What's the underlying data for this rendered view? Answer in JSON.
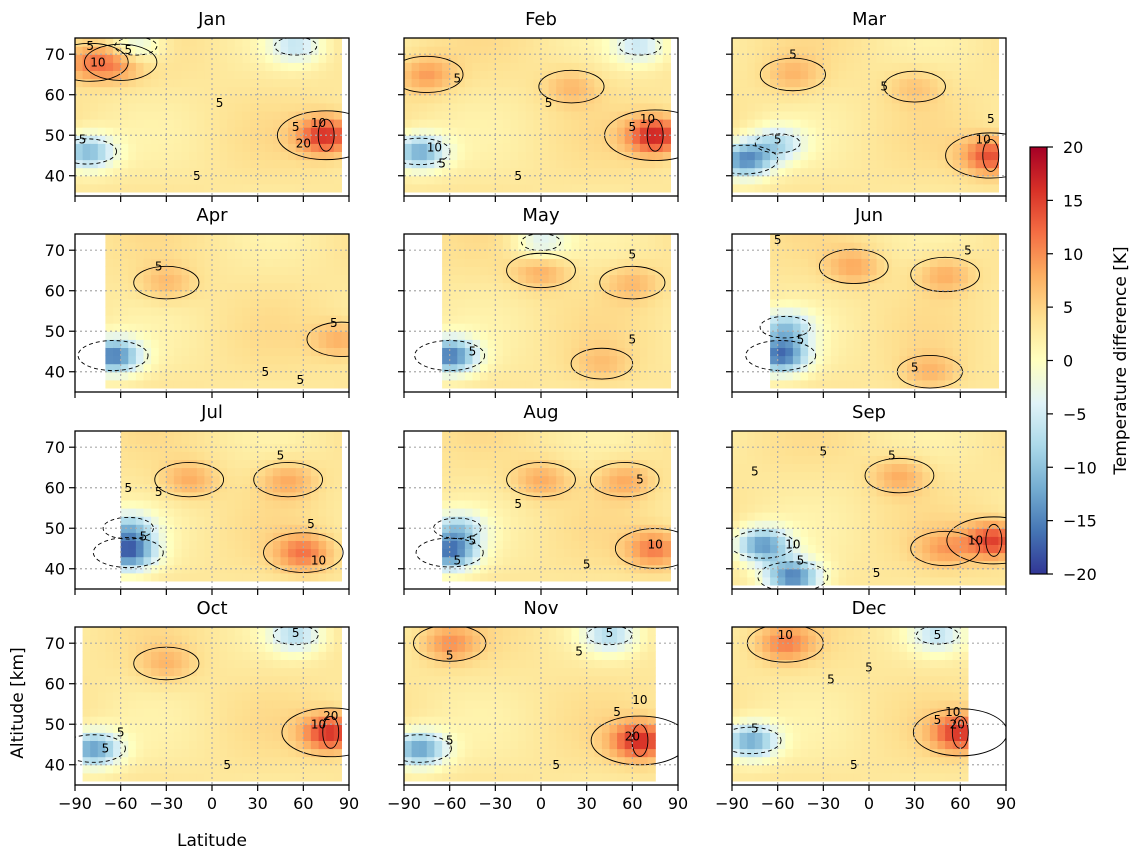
{
  "chart_data": {
    "type": "heatmap",
    "layout": {
      "rows": 4,
      "cols": 3
    },
    "xlabel": "Latitude",
    "ylabel": "Altitude [km]",
    "xlim": [
      -90,
      90
    ],
    "ylim": [
      35,
      74
    ],
    "xticks": [
      -90,
      -60,
      -30,
      0,
      30,
      60,
      90
    ],
    "yticks": [
      40,
      50,
      60,
      70
    ],
    "grid": true,
    "contour_levels": [
      -10,
      -5,
      5,
      10,
      20
    ],
    "colorbar": {
      "label": "Temperature difference [K]",
      "range": [
        -20,
        20
      ],
      "ticks": [
        20,
        15,
        10,
        5,
        0,
        -5,
        -10,
        -15,
        -20
      ],
      "colormap": "RdYlBu_r",
      "colors": [
        "#313695",
        "#4575b4",
        "#74add1",
        "#abd9e9",
        "#e0f3f8",
        "#ffffbf",
        "#fee090",
        "#fdae61",
        "#f46d43",
        "#d73027",
        "#a50026"
      ]
    },
    "panels": [
      {
        "month": "Jan",
        "lat_range": [
          -90,
          85
        ],
        "alt_min": 36,
        "warm": [
          {
            "lat": 75,
            "alt": 50,
            "v": 16
          },
          {
            "lat": -80,
            "alt": 68,
            "v": 10
          },
          {
            "lat": -60,
            "alt": 68,
            "v": 9
          }
        ],
        "cold": [
          {
            "lat": -82,
            "alt": 46,
            "v": -11
          },
          {
            "lat": -50,
            "alt": 72,
            "v": -5
          },
          {
            "lat": 55,
            "alt": 72,
            "v": -5
          }
        ],
        "contour_labels": [
          {
            "lat": -80,
            "alt": 71,
            "text": "5"
          },
          {
            "lat": -55,
            "alt": 70,
            "text": "5"
          },
          {
            "lat": -75,
            "alt": 67,
            "text": "10"
          },
          {
            "lat": 5,
            "alt": 57,
            "text": "5"
          },
          {
            "lat": 55,
            "alt": 51,
            "text": "5"
          },
          {
            "lat": 70,
            "alt": 52,
            "text": "10"
          },
          {
            "lat": 60,
            "alt": 47,
            "text": "20"
          },
          {
            "lat": -85,
            "alt": 48,
            "text": "5"
          },
          {
            "lat": -10,
            "alt": 39,
            "text": "5"
          }
        ]
      },
      {
        "month": "Feb",
        "lat_range": [
          -90,
          85
        ],
        "alt_min": 36,
        "warm": [
          {
            "lat": 75,
            "alt": 50,
            "v": 17
          },
          {
            "lat": -75,
            "alt": 65,
            "v": 9
          },
          {
            "lat": 20,
            "alt": 62,
            "v": 7
          }
        ],
        "cold": [
          {
            "lat": -80,
            "alt": 46,
            "v": -12
          },
          {
            "lat": 65,
            "alt": 72,
            "v": -5
          }
        ],
        "contour_labels": [
          {
            "lat": -55,
            "alt": 63,
            "text": "5"
          },
          {
            "lat": 5,
            "alt": 57,
            "text": "5"
          },
          {
            "lat": 60,
            "alt": 51,
            "text": "5"
          },
          {
            "lat": 70,
            "alt": 53,
            "text": "10"
          },
          {
            "lat": -70,
            "alt": 46,
            "text": "10"
          },
          {
            "lat": -65,
            "alt": 42,
            "text": "5"
          },
          {
            "lat": -15,
            "alt": 39,
            "text": "5"
          }
        ]
      },
      {
        "month": "Mar",
        "lat_range": [
          -90,
          85
        ],
        "alt_min": 36,
        "warm": [
          {
            "lat": 80,
            "alt": 45,
            "v": 14
          },
          {
            "lat": -50,
            "alt": 65,
            "v": 7
          },
          {
            "lat": 30,
            "alt": 62,
            "v": 6
          }
        ],
        "cold": [
          {
            "lat": -82,
            "alt": 44,
            "v": -14
          },
          {
            "lat": -60,
            "alt": 48,
            "v": -6
          }
        ],
        "contour_labels": [
          {
            "lat": -50,
            "alt": 69,
            "text": "5"
          },
          {
            "lat": 10,
            "alt": 61,
            "text": "5"
          },
          {
            "lat": -60,
            "alt": 48,
            "text": "5"
          },
          {
            "lat": 75,
            "alt": 48,
            "text": "10"
          },
          {
            "lat": 80,
            "alt": 53,
            "text": "5"
          }
        ]
      },
      {
        "month": "Apr",
        "lat_range": [
          -70,
          88
        ],
        "alt_min": 36,
        "warm": [
          {
            "lat": -30,
            "alt": 62,
            "v": 7
          },
          {
            "lat": 85,
            "alt": 48,
            "v": 8
          }
        ],
        "cold": [
          {
            "lat": -65,
            "alt": 44,
            "v": -15
          }
        ],
        "contour_labels": [
          {
            "lat": -35,
            "alt": 65,
            "text": "5"
          },
          {
            "lat": 35,
            "alt": 39,
            "text": "5"
          },
          {
            "lat": 58,
            "alt": 37,
            "text": "5"
          },
          {
            "lat": 80,
            "alt": 51,
            "text": "5"
          }
        ]
      },
      {
        "month": "May",
        "lat_range": [
          -65,
          85
        ],
        "alt_min": 36,
        "warm": [
          {
            "lat": 0,
            "alt": 65,
            "v": 8
          },
          {
            "lat": 60,
            "alt": 62,
            "v": 7
          },
          {
            "lat": 40,
            "alt": 42,
            "v": 6
          }
        ],
        "cold": [
          {
            "lat": -60,
            "alt": 44,
            "v": -15
          },
          {
            "lat": 0,
            "alt": 72,
            "v": -4
          }
        ],
        "contour_labels": [
          {
            "lat": 60,
            "alt": 68,
            "text": "5"
          },
          {
            "lat": -45,
            "alt": 44,
            "text": "5"
          },
          {
            "lat": 60,
            "alt": 47,
            "text": "5"
          }
        ]
      },
      {
        "month": "Jun",
        "lat_range": [
          -65,
          85
        ],
        "alt_min": 36,
        "warm": [
          {
            "lat": -10,
            "alt": 66,
            "v": 8
          },
          {
            "lat": 50,
            "alt": 64,
            "v": 8
          },
          {
            "lat": 40,
            "alt": 40,
            "v": 7
          }
        ],
        "cold": [
          {
            "lat": -58,
            "alt": 44,
            "v": -15
          },
          {
            "lat": -55,
            "alt": 51,
            "v": -8
          }
        ],
        "contour_labels": [
          {
            "lat": -60,
            "alt": 72,
            "text": "5"
          },
          {
            "lat": 65,
            "alt": 69,
            "text": "5"
          },
          {
            "lat": -45,
            "alt": 47,
            "text": "5"
          },
          {
            "lat": 30,
            "alt": 40,
            "text": "5"
          }
        ]
      },
      {
        "month": "Jul",
        "lat_range": [
          -60,
          85
        ],
        "alt_min": 37,
        "warm": [
          {
            "lat": -15,
            "alt": 62,
            "v": 8
          },
          {
            "lat": 50,
            "alt": 62,
            "v": 8
          },
          {
            "lat": 60,
            "alt": 44,
            "v": 11
          }
        ],
        "cold": [
          {
            "lat": -55,
            "alt": 44,
            "v": -15
          },
          {
            "lat": -55,
            "alt": 50,
            "v": -8
          }
        ],
        "contour_labels": [
          {
            "lat": -55,
            "alt": 59,
            "text": "5"
          },
          {
            "lat": -35,
            "alt": 58,
            "text": "5"
          },
          {
            "lat": 45,
            "alt": 67,
            "text": "5"
          },
          {
            "lat": 65,
            "alt": 50,
            "text": "5"
          },
          {
            "lat": 70,
            "alt": 41,
            "text": "10"
          },
          {
            "lat": -45,
            "alt": 47,
            "text": "5"
          }
        ]
      },
      {
        "month": "Aug",
        "lat_range": [
          -65,
          83
        ],
        "alt_min": 37,
        "warm": [
          {
            "lat": 0,
            "alt": 62,
            "v": 8
          },
          {
            "lat": 55,
            "alt": 62,
            "v": 8
          },
          {
            "lat": 75,
            "alt": 45,
            "v": 11
          }
        ],
        "cold": [
          {
            "lat": -60,
            "alt": 44,
            "v": -14
          },
          {
            "lat": -55,
            "alt": 50,
            "v": -7
          }
        ],
        "contour_labels": [
          {
            "lat": -15,
            "alt": 55,
            "text": "5"
          },
          {
            "lat": 65,
            "alt": 61,
            "text": "5"
          },
          {
            "lat": 75,
            "alt": 45,
            "text": "10"
          },
          {
            "lat": -45,
            "alt": 46,
            "text": "5"
          },
          {
            "lat": -55,
            "alt": 41,
            "text": "5"
          },
          {
            "lat": 30,
            "alt": 40,
            "text": "5"
          }
        ]
      },
      {
        "month": "Sep",
        "lat_range": [
          -90,
          88
        ],
        "alt_min": 36,
        "warm": [
          {
            "lat": 20,
            "alt": 63,
            "v": 8
          },
          {
            "lat": 82,
            "alt": 47,
            "v": 15
          },
          {
            "lat": 50,
            "alt": 45,
            "v": 8
          }
        ],
        "cold": [
          {
            "lat": -70,
            "alt": 46,
            "v": -13
          },
          {
            "lat": -50,
            "alt": 38,
            "v": -15
          }
        ],
        "contour_labels": [
          {
            "lat": -75,
            "alt": 63,
            "text": "5"
          },
          {
            "lat": -30,
            "alt": 68,
            "text": "5"
          },
          {
            "lat": 15,
            "alt": 67,
            "text": "5"
          },
          {
            "lat": -50,
            "alt": 45,
            "text": "10"
          },
          {
            "lat": -45,
            "alt": 41,
            "text": "5"
          },
          {
            "lat": 5,
            "alt": 38,
            "text": "5"
          },
          {
            "lat": 70,
            "alt": 46,
            "text": "10"
          }
        ]
      },
      {
        "month": "Oct",
        "lat_range": [
          -85,
          85
        ],
        "alt_min": 36,
        "warm": [
          {
            "lat": 78,
            "alt": 48,
            "v": 16
          },
          {
            "lat": -30,
            "alt": 65,
            "v": 7
          }
        ],
        "cold": [
          {
            "lat": -78,
            "alt": 44,
            "v": -13
          },
          {
            "lat": 55,
            "alt": 72,
            "v": -6
          }
        ],
        "contour_labels": [
          {
            "lat": 55,
            "alt": 72,
            "text": "5"
          },
          {
            "lat": -60,
            "alt": 47,
            "text": "5"
          },
          {
            "lat": -70,
            "alt": 43,
            "text": "5"
          },
          {
            "lat": 10,
            "alt": 39,
            "text": "5"
          },
          {
            "lat": 70,
            "alt": 49,
            "text": "10"
          },
          {
            "lat": 78,
            "alt": 51,
            "text": "20"
          }
        ]
      },
      {
        "month": "Nov",
        "lat_range": [
          -90,
          75
        ],
        "alt_min": 36,
        "warm": [
          {
            "lat": 65,
            "alt": 46,
            "v": 16
          },
          {
            "lat": -60,
            "alt": 70,
            "v": 9
          }
        ],
        "cold": [
          {
            "lat": -80,
            "alt": 44,
            "v": -13
          },
          {
            "lat": 45,
            "alt": 72,
            "v": -6
          }
        ],
        "contour_labels": [
          {
            "lat": -60,
            "alt": 66,
            "text": "5"
          },
          {
            "lat": 25,
            "alt": 67,
            "text": "5"
          },
          {
            "lat": 45,
            "alt": 72,
            "text": "5"
          },
          {
            "lat": 50,
            "alt": 52,
            "text": "5"
          },
          {
            "lat": 60,
            "alt": 46,
            "text": "20"
          },
          {
            "lat": 65,
            "alt": 55,
            "text": "10"
          },
          {
            "lat": -60,
            "alt": 45,
            "text": "5"
          },
          {
            "lat": 10,
            "alt": 39,
            "text": "5"
          }
        ]
      },
      {
        "month": "Dec",
        "lat_range": [
          -90,
          65
        ],
        "alt_min": 36,
        "warm": [
          {
            "lat": 60,
            "alt": 48,
            "v": 15
          },
          {
            "lat": -55,
            "alt": 70,
            "v": 10
          }
        ],
        "cold": [
          {
            "lat": -78,
            "alt": 46,
            "v": -12
          },
          {
            "lat": 45,
            "alt": 72,
            "v": -5
          }
        ],
        "contour_labels": [
          {
            "lat": -55,
            "alt": 71,
            "text": "10"
          },
          {
            "lat": -25,
            "alt": 60,
            "text": "5"
          },
          {
            "lat": 0,
            "alt": 63,
            "text": "5"
          },
          {
            "lat": 45,
            "alt": 71,
            "text": "5"
          },
          {
            "lat": 45,
            "alt": 50,
            "text": "5"
          },
          {
            "lat": 55,
            "alt": 52,
            "text": "10"
          },
          {
            "lat": 58,
            "alt": 49,
            "text": "20"
          },
          {
            "lat": -75,
            "alt": 48,
            "text": "5"
          },
          {
            "lat": -10,
            "alt": 39,
            "text": "5"
          }
        ]
      }
    ]
  }
}
